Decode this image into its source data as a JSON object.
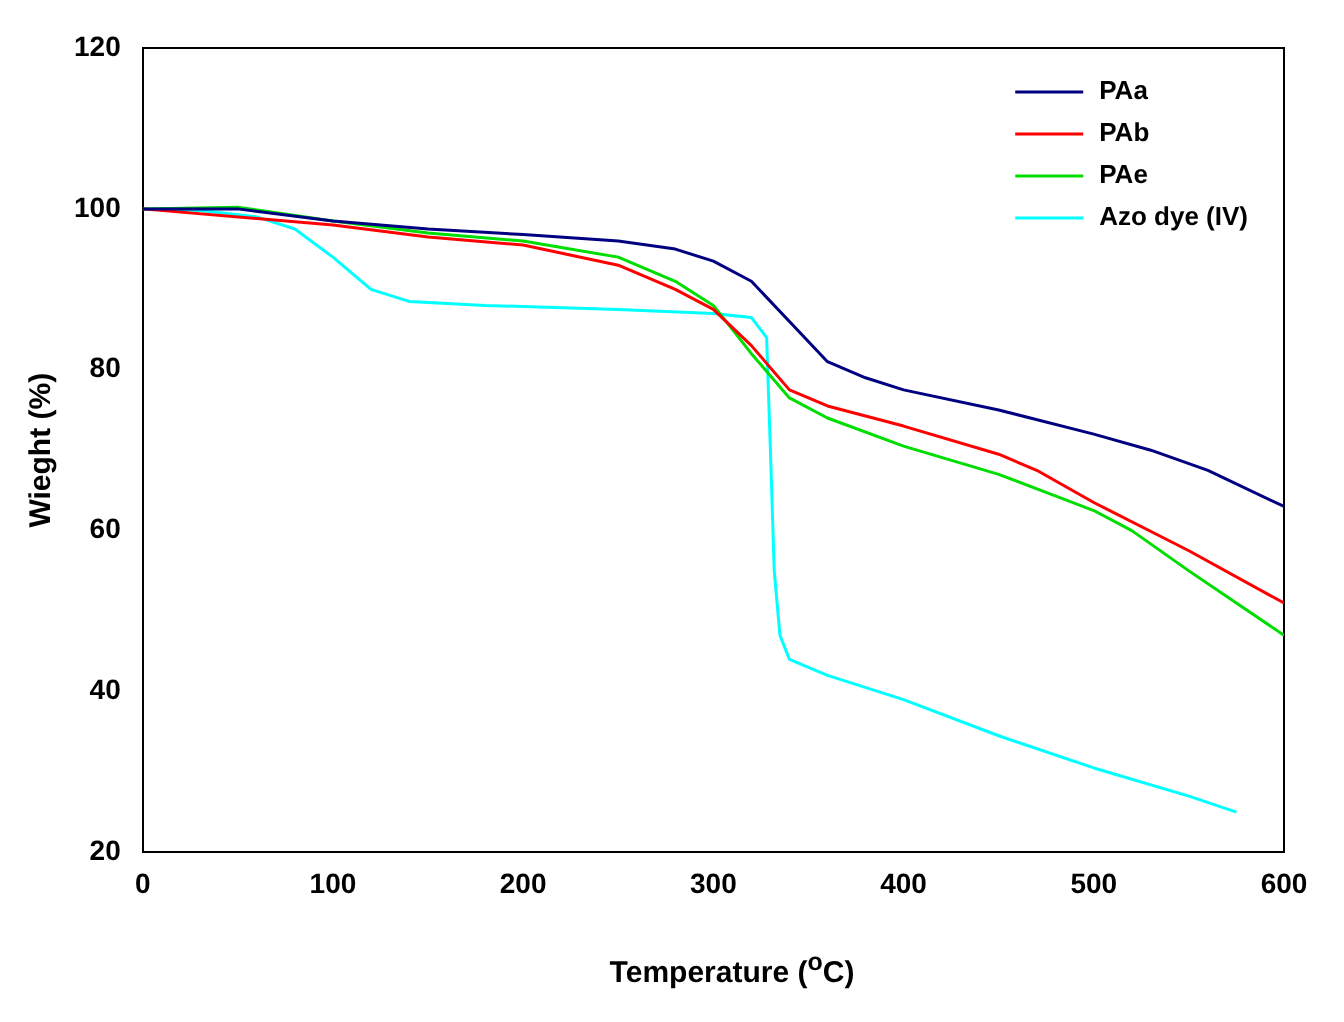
{
  "chart_data": {
    "type": "line",
    "xlabel": "Temperature ($^{o}$C)",
    "ylabel": "Wieght (%)",
    "xlim": [
      0,
      600
    ],
    "xticks": [
      0,
      100,
      200,
      300,
      400,
      500,
      600
    ],
    "ylim": [
      20,
      120
    ],
    "yticks": [
      20,
      40,
      60,
      80,
      100,
      120
    ],
    "grid": false,
    "legend": "top right",
    "marker": "none",
    "line_style": "solid",
    "series": [
      {
        "name": "PAa",
        "color": "#000080",
        "x": [
          0,
          50,
          100,
          150,
          200,
          250,
          280,
          300,
          320,
          340,
          360,
          380,
          400,
          450,
          500,
          530,
          560,
          600
        ],
        "values": [
          100,
          100,
          98.5,
          97.5,
          96.8,
          96,
          95,
          93.5,
          91,
          86,
          81,
          79,
          77.5,
          75,
          72,
          70,
          67.5,
          63
        ]
      },
      {
        "name": "PAb",
        "color": "#ff0000",
        "x": [
          0,
          100,
          150,
          200,
          250,
          280,
          300,
          320,
          340,
          360,
          400,
          450,
          470,
          500,
          550,
          600
        ],
        "values": [
          100,
          98,
          96.5,
          95.5,
          93,
          90,
          87.5,
          83,
          77.5,
          75.5,
          73,
          69.5,
          67.5,
          63.5,
          57.5,
          51
        ]
      },
      {
        "name": "PAe",
        "color": "#00dd00",
        "x": [
          0,
          50,
          100,
          150,
          200,
          250,
          280,
          300,
          320,
          340,
          360,
          400,
          450,
          500,
          520,
          550,
          600
        ],
        "values": [
          100,
          100.2,
          98.5,
          97,
          96,
          94,
          91,
          88,
          82,
          76.5,
          74,
          70.5,
          67,
          62.5,
          60,
          55,
          47
        ]
      },
      {
        "name": "Azo dye (IV)",
        "color": "#00ffff",
        "x": [
          0,
          30,
          60,
          80,
          100,
          120,
          140,
          180,
          250,
          300,
          320,
          328,
          330,
          332,
          335,
          340,
          360,
          400,
          450,
          500,
          550,
          575
        ],
        "values": [
          100,
          99.8,
          99,
          97.5,
          94,
          90,
          88.5,
          88,
          87.5,
          87,
          86.5,
          84,
          70,
          55,
          47,
          44,
          42,
          39,
          34.5,
          30.5,
          27,
          25
        ]
      }
    ]
  }
}
